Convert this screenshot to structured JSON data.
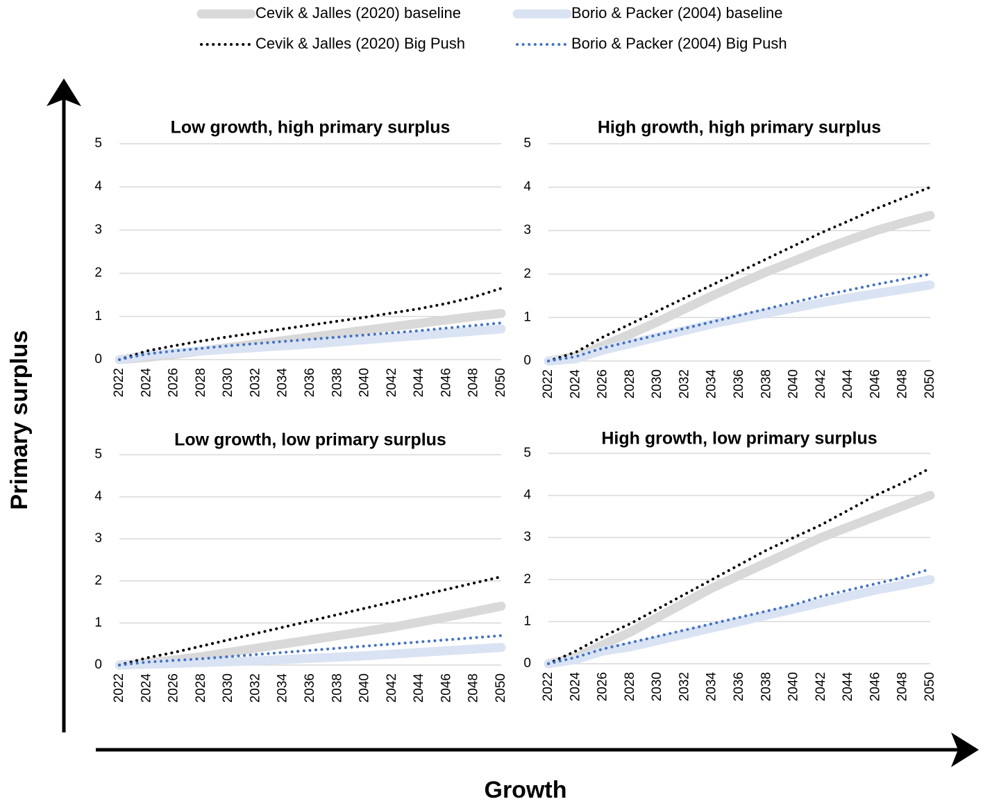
{
  "y_label": "Primary surplus",
  "x_label": "Growth",
  "chart_data": [
    {
      "type": "line",
      "title": "Low growth, high primary surplus",
      "x": [
        2022,
        2024,
        2026,
        2028,
        2030,
        2032,
        2034,
        2036,
        2038,
        2040,
        2042,
        2044,
        2046,
        2048,
        2050
      ],
      "xlim": [
        2022,
        2050
      ],
      "xticks": [
        2022,
        2024,
        2026,
        2028,
        2030,
        2032,
        2034,
        2036,
        2038,
        2040,
        2042,
        2044,
        2046,
        2048,
        2050
      ],
      "ylim": [
        0,
        5
      ],
      "yticks": [
        0,
        1,
        2,
        3,
        4,
        5
      ],
      "grid": true,
      "series": [
        {
          "name": "Cevik & Jalles (2020) baseline",
          "color": "#d9d9d9",
          "line_style": "solid",
          "values": [
            0,
            0.05,
            0.12,
            0.2,
            0.28,
            0.36,
            0.44,
            0.52,
            0.6,
            0.68,
            0.76,
            0.84,
            0.92,
            1.0,
            1.07
          ]
        },
        {
          "name": "Borio & Packer (2004) baseline",
          "color": "#dae3f3",
          "line_style": "solid",
          "values": [
            0,
            0.1,
            0.15,
            0.2,
            0.24,
            0.28,
            0.32,
            0.36,
            0.41,
            0.46,
            0.51,
            0.56,
            0.61,
            0.66,
            0.71
          ]
        },
        {
          "name": "Cevik & Jalles (2020) Big Push",
          "color": "#000000",
          "line_style": "dotted",
          "values": [
            0,
            0.2,
            0.32,
            0.43,
            0.53,
            0.62,
            0.71,
            0.8,
            0.89,
            0.98,
            1.08,
            1.18,
            1.3,
            1.45,
            1.65
          ]
        },
        {
          "name": "Borio & Packer (2004) Big Push",
          "color": "#4472c4",
          "line_style": "dotted",
          "values": [
            0,
            0.13,
            0.2,
            0.26,
            0.32,
            0.37,
            0.42,
            0.47,
            0.52,
            0.57,
            0.62,
            0.67,
            0.73,
            0.79,
            0.85
          ]
        }
      ]
    },
    {
      "type": "line",
      "title": "High growth, high primary surplus",
      "x": [
        2022,
        2024,
        2026,
        2028,
        2030,
        2032,
        2034,
        2036,
        2038,
        2040,
        2042,
        2044,
        2046,
        2048,
        2050
      ],
      "xlim": [
        2022,
        2050
      ],
      "xticks": [
        2022,
        2024,
        2026,
        2028,
        2030,
        2032,
        2034,
        2036,
        2038,
        2040,
        2042,
        2044,
        2046,
        2048,
        2050
      ],
      "ylim": [
        0,
        5
      ],
      "yticks": [
        0,
        1,
        2,
        3,
        4,
        5
      ],
      "grid": true,
      "series": [
        {
          "name": "Cevik & Jalles (2020) baseline",
          "color": "#d9d9d9",
          "line_style": "solid",
          "values": [
            0,
            0.1,
            0.35,
            0.62,
            0.9,
            1.2,
            1.5,
            1.78,
            2.05,
            2.3,
            2.55,
            2.78,
            3.0,
            3.18,
            3.35
          ]
        },
        {
          "name": "Borio & Packer (2004) baseline",
          "color": "#dae3f3",
          "line_style": "solid",
          "values": [
            0,
            0.05,
            0.25,
            0.4,
            0.55,
            0.7,
            0.85,
            0.98,
            1.1,
            1.22,
            1.34,
            1.45,
            1.55,
            1.65,
            1.75
          ]
        },
        {
          "name": "Cevik & Jalles (2020) Big Push",
          "color": "#000000",
          "line_style": "dotted",
          "values": [
            0,
            0.2,
            0.55,
            0.85,
            1.15,
            1.45,
            1.75,
            2.05,
            2.35,
            2.65,
            2.95,
            3.22,
            3.5,
            3.75,
            4.0
          ]
        },
        {
          "name": "Borio & Packer (2004) Big Push",
          "color": "#4472c4",
          "line_style": "dotted",
          "values": [
            0,
            0.1,
            0.3,
            0.45,
            0.6,
            0.75,
            0.9,
            1.05,
            1.2,
            1.35,
            1.5,
            1.63,
            1.76,
            1.88,
            2.0
          ]
        }
      ]
    },
    {
      "type": "line",
      "title": "Low growth, low primary surplus",
      "x": [
        2022,
        2024,
        2026,
        2028,
        2030,
        2032,
        2034,
        2036,
        2038,
        2040,
        2042,
        2044,
        2046,
        2048,
        2050
      ],
      "xlim": [
        2022,
        2050
      ],
      "xticks": [
        2022,
        2024,
        2026,
        2028,
        2030,
        2032,
        2034,
        2036,
        2038,
        2040,
        2042,
        2044,
        2046,
        2048,
        2050
      ],
      "ylim": [
        0,
        5
      ],
      "yticks": [
        0,
        1,
        2,
        3,
        4,
        5
      ],
      "grid": true,
      "series": [
        {
          "name": "Cevik & Jalles (2020) baseline",
          "color": "#d9d9d9",
          "line_style": "solid",
          "values": [
            0,
            0.05,
            0.12,
            0.2,
            0.3,
            0.4,
            0.5,
            0.6,
            0.7,
            0.8,
            0.9,
            1.02,
            1.14,
            1.27,
            1.4
          ]
        },
        {
          "name": "Borio & Packer (2004) baseline",
          "color": "#dae3f3",
          "line_style": "solid",
          "values": [
            0,
            0.02,
            0.04,
            0.06,
            0.08,
            0.1,
            0.13,
            0.16,
            0.19,
            0.22,
            0.26,
            0.3,
            0.34,
            0.38,
            0.42
          ]
        },
        {
          "name": "Cevik & Jalles (2020) Big Push",
          "color": "#000000",
          "line_style": "dotted",
          "values": [
            0,
            0.17,
            0.3,
            0.45,
            0.6,
            0.75,
            0.9,
            1.05,
            1.2,
            1.35,
            1.5,
            1.65,
            1.8,
            1.95,
            2.1
          ]
        },
        {
          "name": "Borio & Packer (2004) Big Push",
          "color": "#4472c4",
          "line_style": "dotted",
          "values": [
            0,
            0.07,
            0.11,
            0.15,
            0.2,
            0.25,
            0.3,
            0.35,
            0.4,
            0.45,
            0.5,
            0.55,
            0.6,
            0.65,
            0.7
          ]
        }
      ]
    },
    {
      "type": "line",
      "title": "High growth, low primary surplus",
      "x": [
        2022,
        2024,
        2026,
        2028,
        2030,
        2032,
        2034,
        2036,
        2038,
        2040,
        2042,
        2044,
        2046,
        2048,
        2050
      ],
      "xlim": [
        2022,
        2050
      ],
      "xticks": [
        2022,
        2024,
        2026,
        2028,
        2030,
        2032,
        2034,
        2036,
        2038,
        2040,
        2042,
        2044,
        2046,
        2048,
        2050
      ],
      "ylim": [
        0,
        5
      ],
      "yticks": [
        0,
        1,
        2,
        3,
        4,
        5
      ],
      "grid": true,
      "series": [
        {
          "name": "Cevik & Jalles (2020) baseline",
          "color": "#d9d9d9",
          "line_style": "solid",
          "values": [
            0,
            0.15,
            0.45,
            0.75,
            1.1,
            1.45,
            1.8,
            2.1,
            2.4,
            2.7,
            3.0,
            3.25,
            3.5,
            3.75,
            4.0
          ]
        },
        {
          "name": "Borio & Packer (2004) baseline",
          "color": "#dae3f3",
          "line_style": "solid",
          "values": [
            0,
            0.1,
            0.3,
            0.4,
            0.55,
            0.7,
            0.85,
            1.0,
            1.15,
            1.3,
            1.45,
            1.6,
            1.75,
            1.87,
            2.0
          ]
        },
        {
          "name": "Cevik & Jalles (2020) Big Push",
          "color": "#000000",
          "line_style": "dotted",
          "values": [
            0,
            0.3,
            0.65,
            0.95,
            1.3,
            1.65,
            2.0,
            2.35,
            2.7,
            3.0,
            3.3,
            3.65,
            4.0,
            4.3,
            4.65
          ]
        },
        {
          "name": "Borio & Packer (2004) Big Push",
          "color": "#4472c4",
          "line_style": "dotted",
          "values": [
            0,
            0.15,
            0.35,
            0.5,
            0.65,
            0.8,
            0.95,
            1.1,
            1.25,
            1.4,
            1.6,
            1.75,
            1.9,
            2.05,
            2.25
          ]
        }
      ]
    }
  ]
}
